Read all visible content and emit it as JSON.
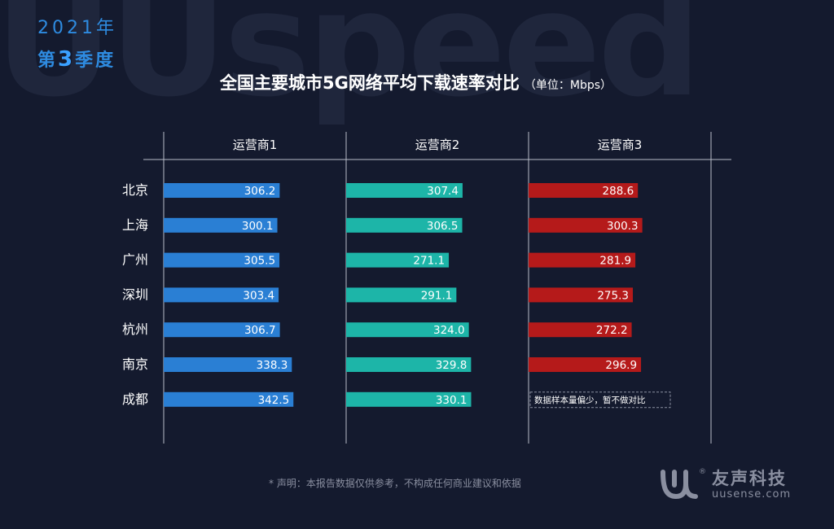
{
  "watermark": "UUspeed",
  "header": {
    "year": "2021年",
    "quarter_prefix": "第",
    "quarter_num": "3",
    "quarter_suffix": "季度"
  },
  "title": {
    "main": "全国主要城市5G网络平均下载速率对比",
    "unit": "（单位：Mbps）"
  },
  "chart_data": {
    "type": "bar",
    "orientation": "horizontal",
    "layout": "small-multiples",
    "categories": [
      "北京",
      "上海",
      "广州",
      "深圳",
      "杭州",
      "南京",
      "成都"
    ],
    "series": [
      {
        "name": "运营商1",
        "color": "#2a7fd4",
        "values": [
          306.2,
          300.1,
          305.5,
          303.4,
          306.7,
          338.3,
          342.5
        ]
      },
      {
        "name": "运营商2",
        "color": "#1db5a8",
        "values": [
          307.4,
          306.5,
          271.1,
          291.1,
          324.0,
          329.8,
          330.1
        ]
      },
      {
        "name": "运营商3",
        "color": "#b51a1a",
        "values": [
          288.6,
          300.3,
          281.9,
          275.3,
          272.2,
          296.9,
          null
        ]
      }
    ],
    "annotations": [
      {
        "series": "运营商3",
        "category": "成都",
        "text": "数据样本量偏少，暂不做对比"
      }
    ],
    "xlim": [
      0,
      500
    ],
    "grid": false
  },
  "footer": {
    "note": "* 声明：本报告数据仅供参考，不构成任何商业建议和依据"
  },
  "brand": {
    "name": "友声科技",
    "url": "uusense.com"
  }
}
